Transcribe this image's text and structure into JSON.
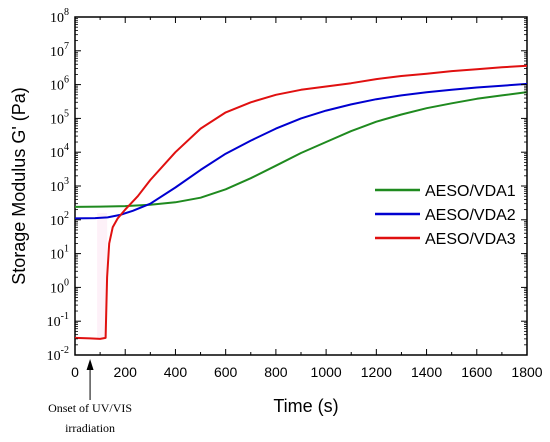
{
  "chart_data": {
    "type": "line",
    "xlabel": "Time (s)",
    "ylabel": "Storage Modulus G' (Pa)",
    "xlim": [
      0,
      1800
    ],
    "ylim_log10": [
      -2,
      8
    ],
    "yscale": "log",
    "x_ticks": [
      0,
      200,
      400,
      600,
      800,
      1000,
      1200,
      1400,
      1600,
      1800
    ],
    "y_tick_exponents": [
      -2,
      -1,
      0,
      1,
      2,
      3,
      4,
      5,
      6,
      7,
      8
    ],
    "y_tick_base": "10",
    "legend_position": "right-middle",
    "annotation": {
      "line1": "Onset of UV/VIS",
      "line2": "irradiation",
      "x": 60
    },
    "series": [
      {
        "name": "AESO/VDA1",
        "color": "#1f8a1f",
        "points": [
          [
            0,
            240
          ],
          [
            100,
            245
          ],
          [
            200,
            255
          ],
          [
            300,
            280
          ],
          [
            400,
            330
          ],
          [
            500,
            450
          ],
          [
            600,
            800
          ],
          [
            700,
            1700
          ],
          [
            800,
            4000
          ],
          [
            900,
            9500
          ],
          [
            1000,
            20000
          ],
          [
            1100,
            42000
          ],
          [
            1200,
            80000
          ],
          [
            1300,
            130000
          ],
          [
            1400,
            200000
          ],
          [
            1500,
            280000
          ],
          [
            1600,
            380000
          ],
          [
            1700,
            480000
          ],
          [
            1800,
            600000
          ]
        ]
      },
      {
        "name": "AESO/VDA2",
        "color": "#0000d0",
        "points": [
          [
            0,
            110
          ],
          [
            80,
            112
          ],
          [
            130,
            118
          ],
          [
            180,
            140
          ],
          [
            230,
            185
          ],
          [
            300,
            300
          ],
          [
            400,
            900
          ],
          [
            500,
            3000
          ],
          [
            600,
            9000
          ],
          [
            700,
            22000
          ],
          [
            800,
            50000
          ],
          [
            900,
            100000
          ],
          [
            1000,
            170000
          ],
          [
            1100,
            260000
          ],
          [
            1200,
            370000
          ],
          [
            1300,
            480000
          ],
          [
            1400,
            590000
          ],
          [
            1500,
            700000
          ],
          [
            1600,
            820000
          ],
          [
            1700,
            930000
          ],
          [
            1800,
            1050000
          ]
        ]
      },
      {
        "name": "AESO/VDA3",
        "color": "#e01010",
        "points": [
          [
            0,
            0.032
          ],
          [
            60,
            0.031
          ],
          [
            100,
            0.03
          ],
          [
            122,
            0.032
          ],
          [
            128,
            2
          ],
          [
            136,
            20
          ],
          [
            150,
            60
          ],
          [
            170,
            110
          ],
          [
            200,
            200
          ],
          [
            250,
            500
          ],
          [
            300,
            1500
          ],
          [
            400,
            10000
          ],
          [
            500,
            50000
          ],
          [
            600,
            150000
          ],
          [
            700,
            300000
          ],
          [
            800,
            500000
          ],
          [
            900,
            700000
          ],
          [
            1000,
            880000
          ],
          [
            1100,
            1100000
          ],
          [
            1200,
            1450000
          ],
          [
            1300,
            1800000
          ],
          [
            1400,
            2100000
          ],
          [
            1500,
            2500000
          ],
          [
            1600,
            2850000
          ],
          [
            1700,
            3250000
          ],
          [
            1800,
            3600000
          ]
        ]
      }
    ]
  }
}
